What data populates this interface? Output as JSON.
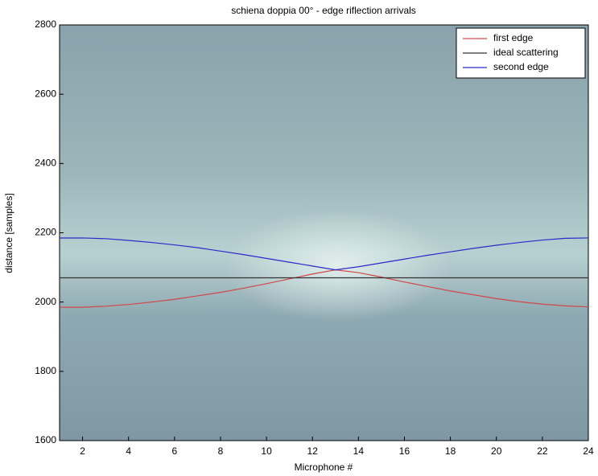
{
  "chart_data": {
    "type": "line",
    "title": "schiena doppia 00° - edge riflection arrivals",
    "x_label": "Microphone #",
    "y_label": "distance [samples]",
    "x": [
      1,
      2,
      3,
      4,
      5,
      6,
      7,
      8,
      9,
      10,
      11,
      12,
      13,
      14,
      15,
      16,
      17,
      18,
      19,
      20,
      21,
      22,
      23,
      24
    ],
    "series": [
      {
        "name": "first edge",
        "color": "#d04848",
        "values": [
          1985,
          1985,
          1988,
          1993,
          2000,
          2008,
          2018,
          2028,
          2040,
          2053,
          2067,
          2081,
          2093,
          2085,
          2072,
          2058,
          2045,
          2032,
          2021,
          2010,
          2001,
          1994,
          1989,
          1986
        ]
      },
      {
        "name": "ideal scattering",
        "color": "#333333",
        "values": [
          2070,
          2070,
          2070,
          2070,
          2070,
          2070,
          2070,
          2070,
          2070,
          2070,
          2070,
          2070,
          2070,
          2070,
          2070,
          2070,
          2070,
          2070,
          2070,
          2070,
          2070,
          2070,
          2070,
          2070
        ]
      },
      {
        "name": "second edge",
        "color": "#2a2ac8",
        "values": [
          2185,
          2185,
          2183,
          2178,
          2172,
          2165,
          2157,
          2147,
          2137,
          2126,
          2115,
          2104,
          2093,
          2102,
          2113,
          2124,
          2135,
          2145,
          2155,
          2164,
          2172,
          2179,
          2184,
          2185
        ]
      }
    ],
    "xlim": [
      1,
      24
    ],
    "ylim": [
      1600,
      2800
    ],
    "xticks": [
      2,
      4,
      6,
      8,
      10,
      12,
      14,
      16,
      18,
      20,
      22,
      24
    ],
    "yticks": [
      1600,
      1800,
      2000,
      2200,
      2400,
      2600,
      2800
    ],
    "legend": "top-right"
  }
}
